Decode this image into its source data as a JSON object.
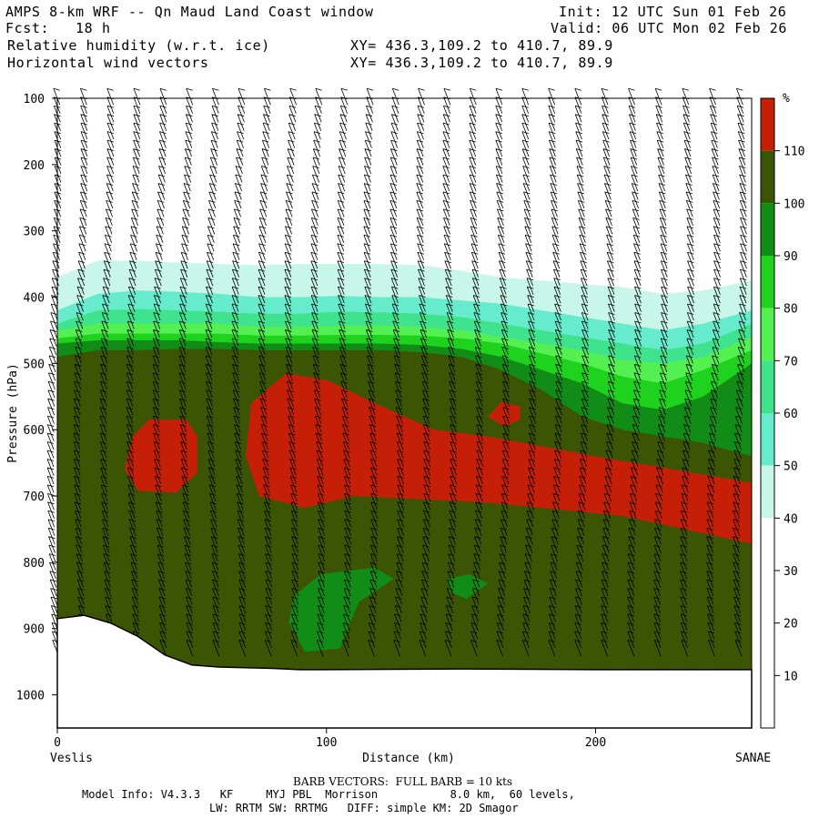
{
  "header": {
    "line1_left": "AMPS 8-km WRF -- Qn Maud Land Coast window",
    "line1_right": "Init: 12 UTC Sun 01 Feb 26",
    "line2_left": "Fcst:   18 h",
    "line2_right": "Valid: 06 UTC Mon 02 Feb 26",
    "line3_left": "Relative humidity (w.r.t. ice)",
    "line3_right": "XY= 436.3,109.2 to 410.7, 89.9",
    "line4_left": "Horizontal wind vectors",
    "line4_right": "XY= 436.3,109.2 to 410.7, 89.9"
  },
  "footer": {
    "barb_note": "BARB VECTORS:  FULL BARB = 10 kts",
    "model_info": "Model Info: V4.3.3   KF     MYJ PBL  Morrison           8.0 km,  60 levels,",
    "physics": "LW: RRTM SW: RRTMG   DIFF: simple KM: 2D Smagor"
  },
  "chart_data": {
    "type": "cross-section contour (filled) with wind barbs",
    "title": "Relative humidity (w.r.t. ice)",
    "xlabel": "Distance (km)",
    "ylabel": "Pressure (hPa)",
    "xlim": [
      0,
      258
    ],
    "ylim": [
      1050,
      100
    ],
    "x_ticks": [
      0,
      100,
      200
    ],
    "y_ticks": [
      100,
      200,
      300,
      400,
      500,
      600,
      700,
      800,
      900,
      1000
    ],
    "endpoint_labels": {
      "left": "Veslis",
      "right": "SANAE"
    },
    "colorbar": {
      "unit": "%",
      "levels": [
        10,
        20,
        30,
        40,
        50,
        60,
        70,
        80,
        90,
        100,
        110
      ],
      "colors": [
        "#ffffff",
        "#ffffff",
        "#ffffff",
        "#c8f6e8",
        "#66eccc",
        "#3fe38d",
        "#54ef51",
        "#1ed21e",
        "#108c17",
        "#3c5505",
        "#c61f07"
      ]
    },
    "rh_layers": [
      {
        "label": ">=30",
        "color": "#c8f6e8",
        "top_p": [
          370,
          345,
          345,
          348,
          350,
          352,
          350,
          350,
          350,
          352,
          360,
          370,
          375,
          380,
          385,
          395,
          390,
          375
        ]
      },
      {
        "label": ">=40",
        "color": "#66eccc",
        "top_p": [
          420,
          395,
          390,
          392,
          395,
          400,
          400,
          398,
          400,
          400,
          405,
          410,
          420,
          430,
          440,
          450,
          440,
          420
        ]
      },
      {
        "label": ">=50",
        "color": "#3fe38d",
        "top_p": [
          440,
          420,
          418,
          420,
          422,
          425,
          425,
          422,
          423,
          425,
          430,
          440,
          450,
          460,
          470,
          480,
          470,
          440
        ]
      },
      {
        "label": ">=60",
        "color": "#54ef51",
        "top_p": [
          450,
          440,
          440,
          440,
          440,
          445,
          445,
          443,
          443,
          445,
          450,
          460,
          470,
          480,
          495,
          500,
          490,
          460
        ]
      },
      {
        "label": ">=70",
        "color": "#1ed21e",
        "top_p": [
          462,
          455,
          455,
          455,
          455,
          458,
          458,
          457,
          457,
          458,
          462,
          470,
          485,
          500,
          520,
          530,
          510,
          480
        ]
      },
      {
        "label": ">=80",
        "color": "#108c17",
        "top_p": [
          470,
          465,
          465,
          465,
          468,
          470,
          470,
          470,
          470,
          472,
          478,
          490,
          510,
          530,
          560,
          570,
          550,
          500
        ]
      },
      {
        "label": ">=90",
        "color": "#3c5505",
        "top_p": [
          490,
          480,
          480,
          478,
          478,
          480,
          480,
          480,
          480,
          483,
          490,
          510,
          540,
          580,
          600,
          610,
          620,
          640
        ]
      }
    ],
    "layer_x_km": [
      0,
      15,
      30,
      45,
      60,
      75,
      90,
      105,
      120,
      135,
      150,
      165,
      180,
      195,
      210,
      225,
      240,
      258
    ],
    "rh_max_regions": [
      {
        "label": ">=100 left",
        "color": "#c61f07",
        "polygon_km_hpa": [
          [
            28,
            610
          ],
          [
            34,
            585
          ],
          [
            48,
            585
          ],
          [
            52,
            610
          ],
          [
            52,
            665
          ],
          [
            44,
            695
          ],
          [
            30,
            692
          ],
          [
            25,
            660
          ]
        ]
      },
      {
        "label": ">=100 main",
        "color": "#c61f07",
        "polygon_km_hpa": [
          [
            72,
            560
          ],
          [
            85,
            515
          ],
          [
            100,
            525
          ],
          [
            118,
            560
          ],
          [
            140,
            600
          ],
          [
            160,
            610
          ],
          [
            200,
            640
          ],
          [
            258,
            680
          ],
          [
            258,
            772
          ],
          [
            210,
            730
          ],
          [
            160,
            710
          ],
          [
            110,
            700
          ],
          [
            92,
            718
          ],
          [
            75,
            700
          ],
          [
            70,
            640
          ]
        ]
      },
      {
        "label": ">=100 small",
        "color": "#c61f07",
        "polygon_km_hpa": [
          [
            160,
            580
          ],
          [
            165,
            558
          ],
          [
            172,
            565
          ],
          [
            172,
            585
          ],
          [
            166,
            595
          ]
        ]
      },
      {
        "label": ">=90 lower",
        "color": "#108c17",
        "polygon_km_hpa": [
          [
            88,
            850
          ],
          [
            98,
            818
          ],
          [
            118,
            808
          ],
          [
            125,
            825
          ],
          [
            112,
            860
          ],
          [
            105,
            930
          ],
          [
            92,
            935
          ],
          [
            86,
            890
          ]
        ]
      },
      {
        "label": ">=90 lower small",
        "color": "#108c17",
        "polygon_km_hpa": [
          [
            145,
            825
          ],
          [
            153,
            818
          ],
          [
            160,
            832
          ],
          [
            152,
            855
          ],
          [
            146,
            845
          ]
        ]
      }
    ],
    "terrain_surface_p": [
      [
        0,
        885
      ],
      [
        10,
        880
      ],
      [
        20,
        892
      ],
      [
        30,
        912
      ],
      [
        40,
        940
      ],
      [
        50,
        955
      ],
      [
        60,
        958
      ],
      [
        80,
        960
      ],
      [
        90,
        962
      ],
      [
        100,
        962
      ],
      [
        150,
        961
      ],
      [
        200,
        962
      ],
      [
        258,
        962
      ]
    ]
  }
}
